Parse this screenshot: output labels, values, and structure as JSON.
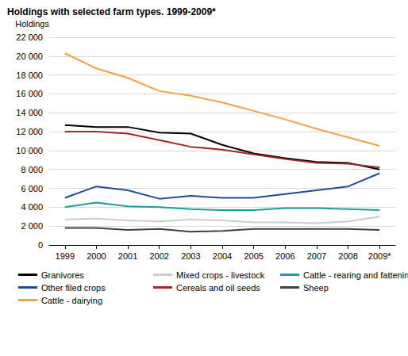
{
  "chart_data": {
    "type": "line",
    "title": "Holdings with selected farm types. 1999-2009*",
    "y_label": "Holdings",
    "categories": [
      "1999",
      "2000",
      "2001",
      "2002",
      "2003",
      "2004",
      "2005",
      "2006",
      "2007",
      "2008",
      "2009*"
    ],
    "series": [
      {
        "name": "Granivores",
        "color": "#000000",
        "values": [
          12700,
          12500,
          12500,
          11900,
          11800,
          10600,
          9700,
          9200,
          8800,
          8700,
          8000
        ]
      },
      {
        "name": "Mixed crops - livestock",
        "color": "#cccccc",
        "values": [
          2700,
          2800,
          2600,
          2500,
          2700,
          2600,
          2400,
          2400,
          2300,
          2500,
          3000
        ]
      },
      {
        "name": "Cattle - rearing and fattening",
        "color": "#1a9e97",
        "values": [
          4000,
          4500,
          4100,
          4000,
          3800,
          3700,
          3700,
          3900,
          3900,
          3800,
          3700
        ]
      },
      {
        "name": "Other filed crops",
        "color": "#1f4e8c",
        "values": [
          5000,
          6200,
          5800,
          4900,
          5200,
          5000,
          5000,
          5400,
          5800,
          6200,
          7600
        ]
      },
      {
        "name": "Cereals and oil seeds",
        "color": "#a3262b",
        "values": [
          12000,
          12000,
          11800,
          11100,
          10400,
          10100,
          9600,
          9100,
          8700,
          8600,
          8200
        ]
      },
      {
        "name": "Sheep",
        "color": "#404040",
        "values": [
          1800,
          1800,
          1600,
          1700,
          1400,
          1500,
          1700,
          1700,
          1700,
          1700,
          1600
        ]
      },
      {
        "name": "Cattle - dairying",
        "color": "#f5a142",
        "values": [
          20300,
          18700,
          17700,
          16300,
          15800,
          15100,
          14200,
          13300,
          12300,
          11400,
          10500
        ]
      }
    ],
    "ylim": [
      0,
      22000
    ],
    "yticks": [
      0,
      {
        "value": 2000,
        "label": "2 000"
      },
      {
        "value": 4000,
        "label": "4 000"
      },
      {
        "value": 6000,
        "label": "6 000"
      },
      {
        "value": 8000,
        "label": "8 000"
      },
      {
        "value": 10000,
        "label": "10 000"
      },
      {
        "value": 12000,
        "label": "12 000"
      },
      {
        "value": 14000,
        "label": "14 000"
      },
      {
        "value": 16000,
        "label": "16 000"
      },
      {
        "value": 18000,
        "label": "18 000"
      },
      {
        "value": 20000,
        "label": "20 000"
      },
      {
        "value": 22000,
        "label": "22 000"
      }
    ],
    "grid": true,
    "legend": "bottom"
  }
}
